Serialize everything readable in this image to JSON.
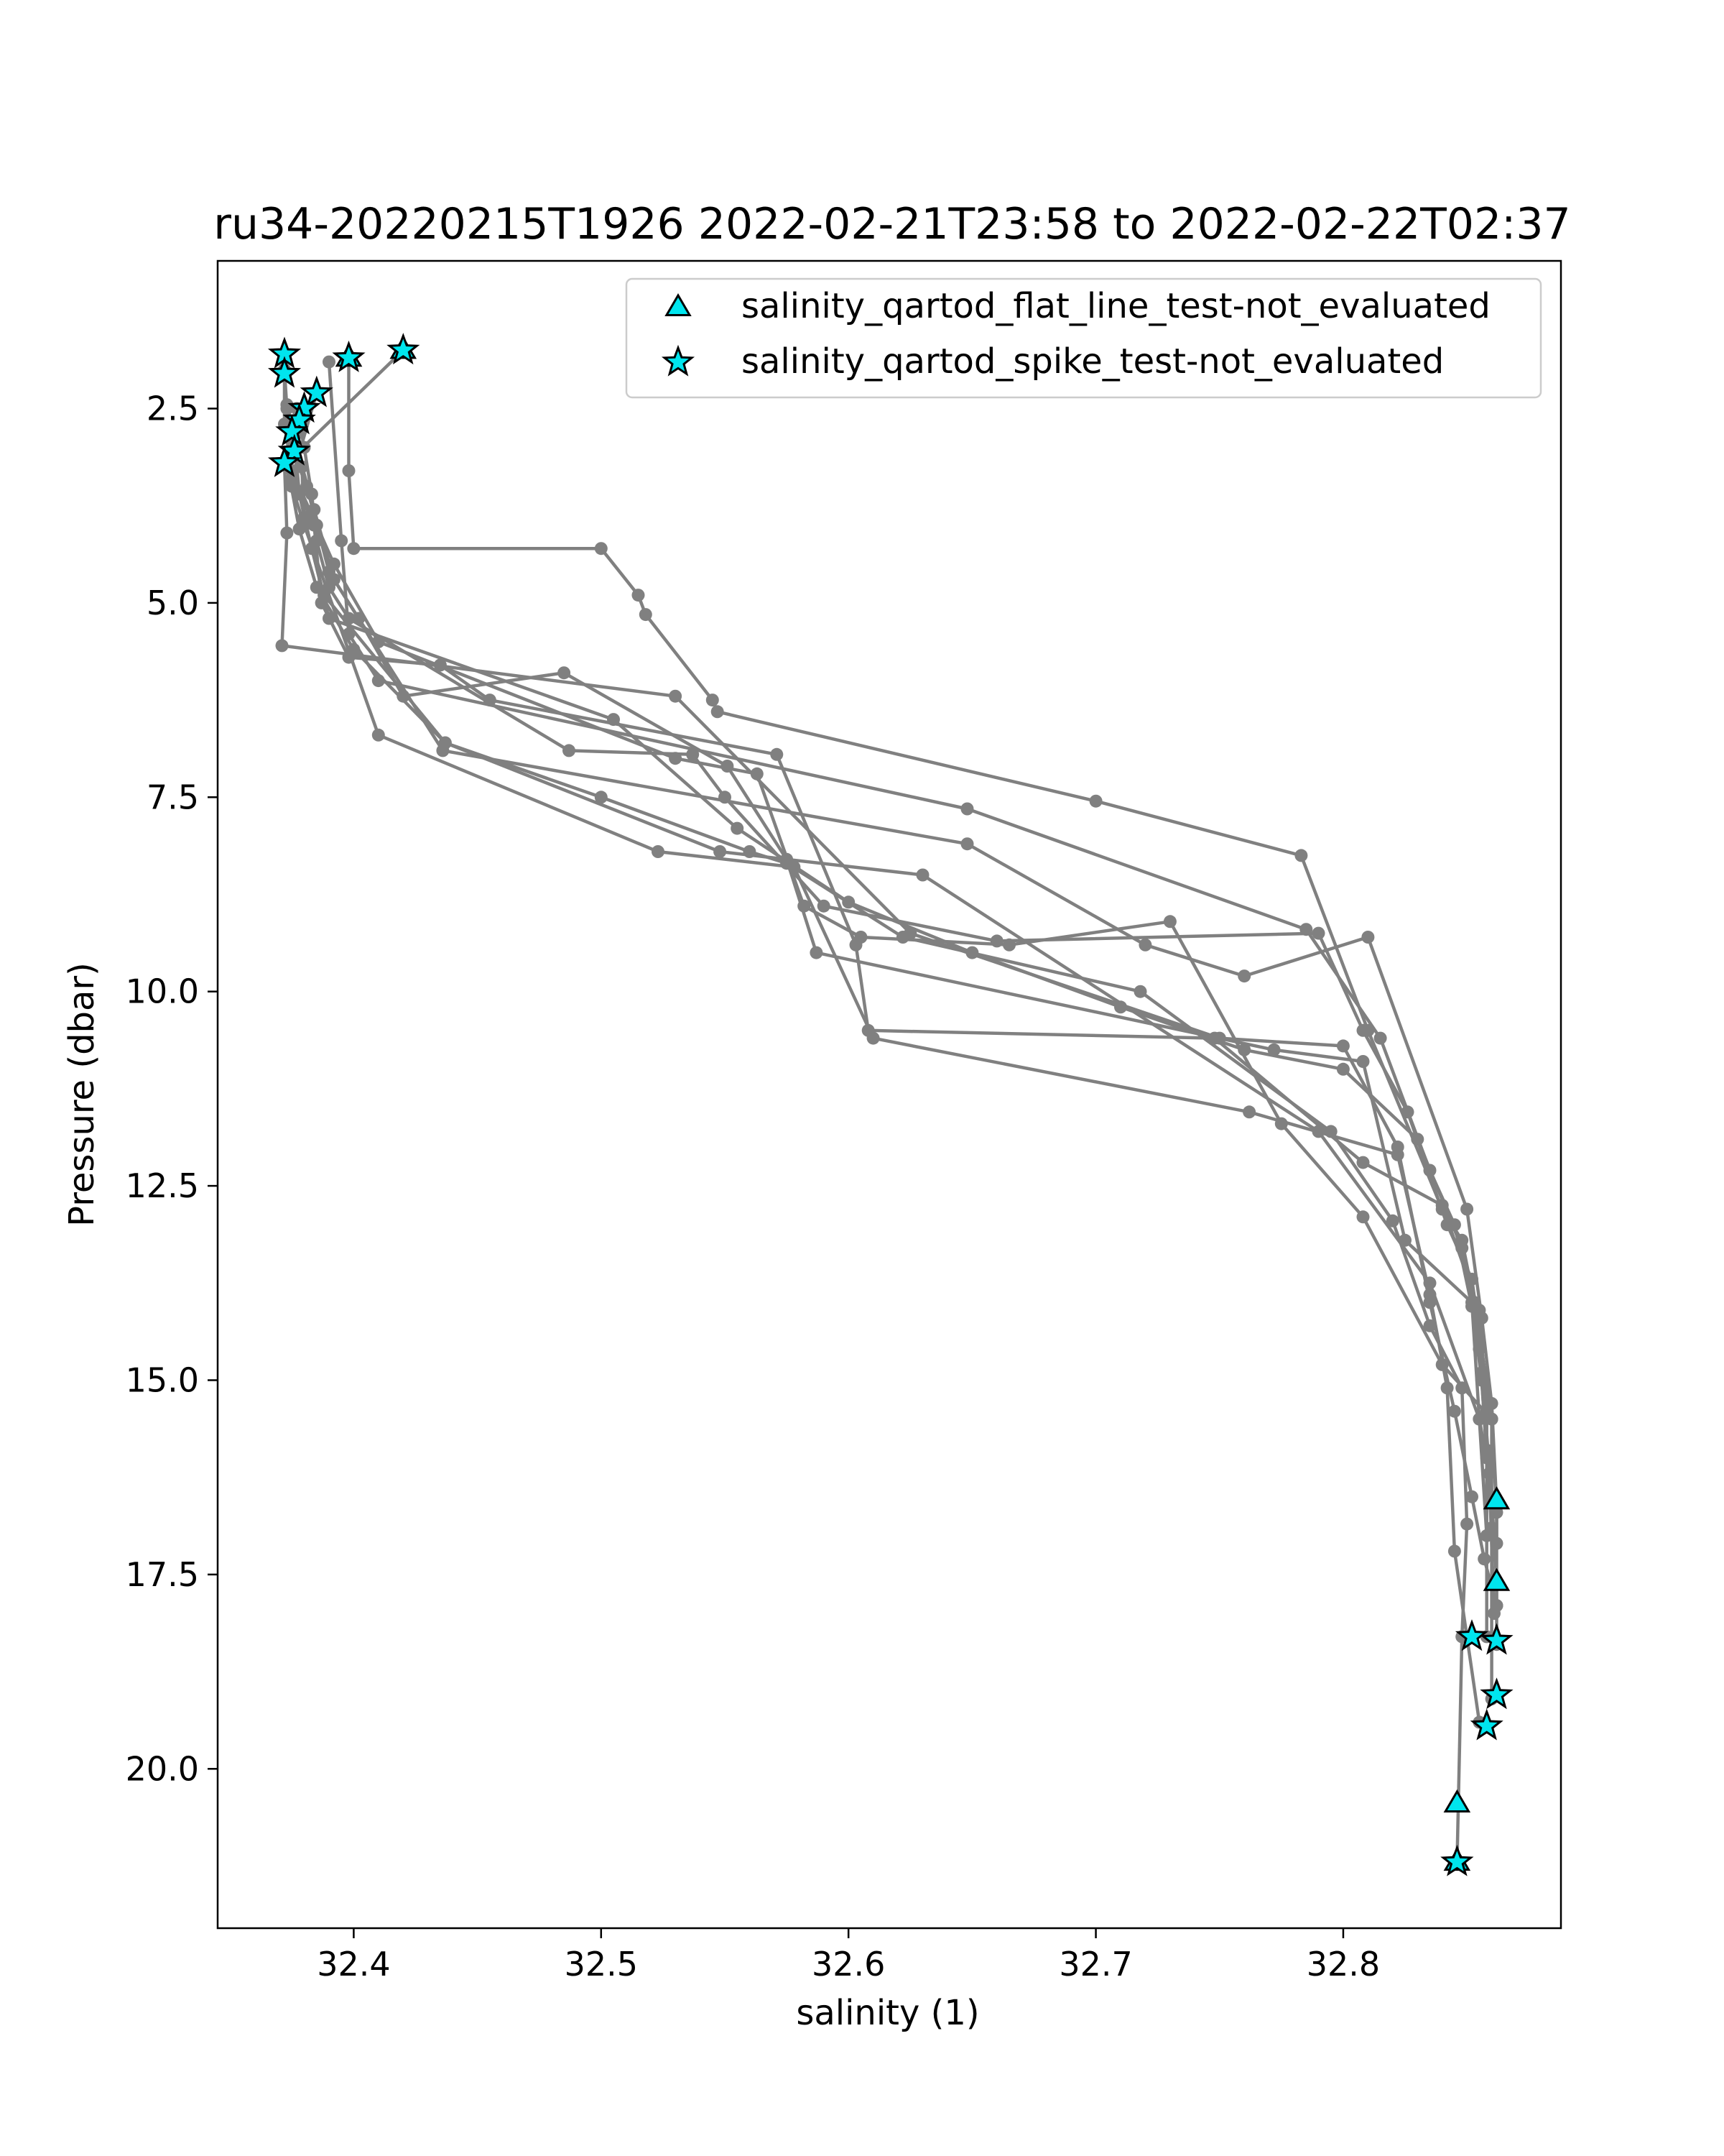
{
  "chart_data": {
    "type": "scatter",
    "title": "ru34-20220215T1926 2022-02-21T23:58 to 2022-02-22T02:37",
    "xlabel": "salinity (1)",
    "ylabel": "Pressure (dbar)",
    "xlim": [
      32.345,
      32.888
    ],
    "ylim": [
      22.05,
      0.6
    ],
    "y_inverted": true,
    "grid": false,
    "legend_position": "top-right",
    "xticks": [
      32.4,
      32.5,
      32.6,
      32.7,
      32.8
    ],
    "xtick_labels": [
      "32.4",
      "32.5",
      "32.6",
      "32.7",
      "32.8"
    ],
    "yticks": [
      2.5,
      5.0,
      7.5,
      10.0,
      12.5,
      15.0,
      17.5,
      20.0
    ],
    "ytick_labels": [
      "2.5",
      "5.0",
      "7.5",
      "10.0",
      "12.5",
      "15.0",
      "17.5",
      "20.0"
    ],
    "colors": {
      "profile_line": "#808080",
      "flag_fill": "#00e5ee",
      "flag_edge": "#000000",
      "axes": "#000000"
    },
    "profiles": [
      {
        "x": [
          32.42,
          32.373,
          32.378,
          32.385,
          32.4,
          32.437,
          32.5,
          32.56,
          32.575,
          32.622,
          32.718,
          32.795,
          32.82,
          32.835,
          32.848,
          32.85,
          32.848,
          32.846
        ],
        "y": [
          1.75,
          3.2,
          4.05,
          4.8,
          5.6,
          6.8,
          7.5,
          8.2,
          8.35,
          9.3,
          10.0,
          11.8,
          12.95,
          14.3,
          15.1,
          16.85,
          18.3,
          21.2
        ]
      },
      {
        "x": [
          32.398,
          32.398,
          32.4,
          32.5,
          32.515,
          32.518,
          32.545,
          32.547,
          32.7,
          32.783,
          32.81,
          32.84,
          32.848,
          32.853,
          32.856,
          32.86,
          32.862,
          32.862
        ],
        "y": [
          1.85,
          3.3,
          4.3,
          4.3,
          4.9,
          5.15,
          6.25,
          6.4,
          7.55,
          8.25,
          10.5,
          12.8,
          13.2,
          14.0,
          14.9,
          16.5,
          17.6,
          18.4
        ]
      },
      {
        "x": [
          32.372,
          32.373,
          32.375,
          32.375,
          32.38,
          32.41,
          32.523,
          32.578,
          32.61,
          32.762,
          32.822,
          32.835,
          32.842,
          32.845,
          32.85,
          32.855
        ],
        "y": [
          2.0,
          2.5,
          2.9,
          3.5,
          4.0,
          6.7,
          8.2,
          8.4,
          10.6,
          11.55,
          12.1,
          13.9,
          15.1,
          17.2,
          18.3,
          19.4
        ]
      },
      {
        "x": [
          32.377,
          32.38,
          32.383,
          32.385,
          32.39,
          32.398,
          32.487,
          32.537,
          32.55,
          32.59,
          32.66,
          32.79,
          32.808,
          32.826,
          32.842,
          32.852,
          32.86,
          32.86
        ],
        "y": [
          2.5,
          3.0,
          3.6,
          4.2,
          4.8,
          5.2,
          6.9,
          6.95,
          7.5,
          8.9,
          9.35,
          9.25,
          10.5,
          11.55,
          13.0,
          13.7,
          15.5,
          19.1
        ]
      },
      {
        "x": [
          32.385,
          32.375,
          32.384,
          32.387,
          32.398,
          32.435,
          32.455,
          32.571,
          32.603,
          32.608,
          32.748,
          32.808,
          32.84,
          32.855,
          32.858,
          32.858
        ],
        "y": [
          2.3,
          3.4,
          4.0,
          5.0,
          5.7,
          5.8,
          6.25,
          6.95,
          9.4,
          10.5,
          10.6,
          12.2,
          12.75,
          14.1,
          15.4,
          18.3
        ]
      },
      {
        "x": [
          32.379,
          32.376,
          32.381,
          32.39,
          32.402,
          32.42,
          32.485,
          32.551,
          32.575,
          32.587,
          32.772,
          32.808,
          32.825,
          32.852,
          32.855,
          32.859,
          32.861
        ],
        "y": [
          2.75,
          3.1,
          3.5,
          4.6,
          5.2,
          6.2,
          5.9,
          7.1,
          8.3,
          9.5,
          10.75,
          10.9,
          13.2,
          14.0,
          15.5,
          16.2,
          18.0
        ]
      },
      {
        "x": [
          32.376,
          32.378,
          32.383,
          32.388,
          32.437,
          32.548,
          32.63,
          32.79,
          32.835,
          32.855,
          32.858
        ],
        "y": [
          2.85,
          3.6,
          4.3,
          4.9,
          6.8,
          8.2,
          8.5,
          11.8,
          13.75,
          15.5,
          17.0
        ]
      },
      {
        "x": [
          32.372,
          32.373,
          32.371,
          32.53,
          32.625,
          32.75,
          32.8,
          32.822,
          32.835,
          32.845,
          32.852,
          32.857,
          32.862
        ],
        "y": [
          3.2,
          4.1,
          5.55,
          6.2,
          9.25,
          10.6,
          10.7,
          12.0,
          14.0,
          15.4,
          16.5,
          17.3,
          17.9
        ]
      },
      {
        "x": [
          32.372,
          32.372,
          32.375,
          32.385,
          32.392,
          32.41,
          32.53,
          32.563,
          32.582,
          32.605,
          32.665,
          32.73,
          32.775,
          32.808,
          32.84,
          32.86,
          32.862,
          32.862
        ],
        "y": [
          2.0,
          2.7,
          3.3,
          4.0,
          4.5,
          5.5,
          7.0,
          7.2,
          8.9,
          9.3,
          9.4,
          9.1,
          11.7,
          12.9,
          14.8,
          15.5,
          16.7,
          17.9
        ]
      },
      {
        "x": [
          32.39,
          32.395,
          32.398,
          32.41,
          32.648,
          32.785,
          32.815,
          32.835,
          32.845,
          32.852,
          32.856,
          32.858,
          32.86
        ],
        "y": [
          1.9,
          4.2,
          5.4,
          6.0,
          7.65,
          9.2,
          10.6,
          12.3,
          13.0,
          14.05,
          15.0,
          16.0,
          16.5
        ]
      },
      {
        "x": [
          32.38,
          32.377,
          32.384,
          32.392,
          32.436,
          32.648,
          32.72,
          32.76,
          32.81,
          32.85,
          32.856,
          32.86,
          32.862,
          32.862
        ],
        "y": [
          2.6,
          3.0,
          3.8,
          4.7,
          6.9,
          8.1,
          9.4,
          9.8,
          9.3,
          12.8,
          14.2,
          15.3,
          16.6,
          17.1
        ]
      },
      {
        "x": [
          32.373,
          32.379,
          32.38,
          32.39,
          32.505,
          32.555,
          32.6,
          32.65,
          32.71,
          32.76,
          32.8,
          32.83,
          32.848,
          32.855,
          32.858,
          32.86
        ],
        "y": [
          2.45,
          3.25,
          3.9,
          5.2,
          6.5,
          7.9,
          8.85,
          9.5,
          10.2,
          10.75,
          11.0,
          11.9,
          13.3,
          14.6,
          15.9,
          16.9
        ]
      }
    ],
    "series": [
      {
        "name": "salinity_qartod_flat_line_test-not_evaluated",
        "marker": "triangle",
        "points": [
          {
            "x": 32.42,
            "y": 1.75
          },
          {
            "x": 32.398,
            "y": 1.85
          },
          {
            "x": 32.862,
            "y": 16.55
          },
          {
            "x": 32.862,
            "y": 17.6
          },
          {
            "x": 32.846,
            "y": 20.45
          },
          {
            "x": 32.846,
            "y": 21.2
          }
        ]
      },
      {
        "name": "salinity_qartod_spike_test-not_evaluated",
        "marker": "star",
        "points": [
          {
            "x": 32.42,
            "y": 1.75
          },
          {
            "x": 32.398,
            "y": 1.85
          },
          {
            "x": 32.372,
            "y": 1.8
          },
          {
            "x": 32.372,
            "y": 2.05
          },
          {
            "x": 32.385,
            "y": 2.3
          },
          {
            "x": 32.38,
            "y": 2.5
          },
          {
            "x": 32.378,
            "y": 2.65
          },
          {
            "x": 32.375,
            "y": 2.8
          },
          {
            "x": 32.376,
            "y": 3.05
          },
          {
            "x": 32.372,
            "y": 3.2
          },
          {
            "x": 32.852,
            "y": 18.3
          },
          {
            "x": 32.862,
            "y": 18.35
          },
          {
            "x": 32.862,
            "y": 19.05
          },
          {
            "x": 32.858,
            "y": 19.45
          },
          {
            "x": 32.846,
            "y": 21.2
          }
        ]
      }
    ]
  }
}
